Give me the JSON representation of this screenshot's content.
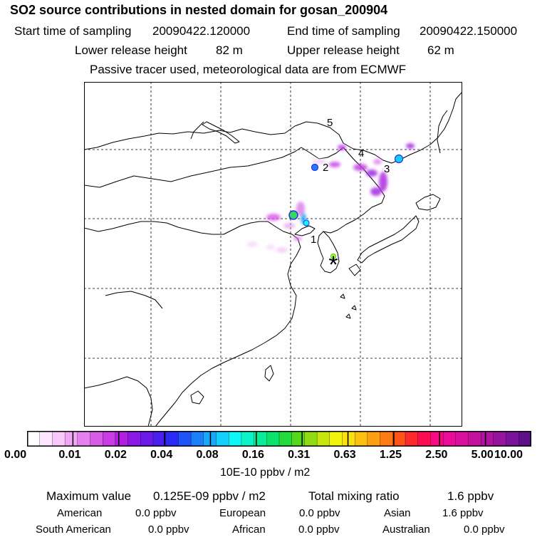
{
  "header": {
    "title": "SO2 source contributions in nested domain for gosan_200904",
    "start_label": "Start time of sampling",
    "start_value": "20090422.120000",
    "end_label": "End time of sampling",
    "end_value": "20090422.150000",
    "lower_label": "Lower release height",
    "lower_value": "82 m",
    "upper_label": "Upper release height",
    "upper_value": "62 m",
    "tracer_note": "Passive tracer used, meteorological data are from ECMWF"
  },
  "map": {
    "markers": [
      "1",
      "2",
      "3",
      "4",
      "5"
    ],
    "receptor_symbol": "*",
    "colors": {
      "frame": "#000000",
      "grid": "#000000",
      "coast": "#000000"
    }
  },
  "colorbar": {
    "colors": [
      "#ffffff",
      "#fde6ff",
      "#f8c8fb",
      "#f1a6f5",
      "#e780ef",
      "#d95ce9",
      "#c93be4",
      "#b31fe0",
      "#8a19e3",
      "#6b1ae8",
      "#4a20ee",
      "#2a2cf5",
      "#1f55f7",
      "#1c7ff8",
      "#18a7fa",
      "#14cffb",
      "#0ff5f8",
      "#0df1c8",
      "#0bec98",
      "#0ae26a",
      "#25da3c",
      "#55d81d",
      "#8fdc12",
      "#c7e50e",
      "#f2f50c",
      "#fbe20d",
      "#fcc10f",
      "#fd9f12",
      "#fd7a15",
      "#fd541a",
      "#fd2a2d",
      "#fc0c52",
      "#f90a82",
      "#ea0d9a",
      "#d9109e",
      "#c4129e",
      "#ae14a0",
      "#9614a0",
      "#7c129c",
      "#5f0f8a"
    ],
    "tick_labels": [
      "0.00",
      "0.01",
      "0.02",
      "0.04",
      "0.08",
      "0.16",
      "0.31",
      "0.63",
      "1.25",
      "2.50",
      "5.00",
      "10.00"
    ],
    "unit": "10E-10 ppbv / m2"
  },
  "stats": {
    "max_label": "Maximum value",
    "max_value": "0.125E-09 ppbv / m2",
    "total_label": "Total mixing ratio",
    "total_value": "1.6 ppbv",
    "regions": [
      {
        "name": "American",
        "value": "0.0 ppbv"
      },
      {
        "name": "European",
        "value": "0.0 ppbv"
      },
      {
        "name": "Asian",
        "value": "1.6 ppbv"
      },
      {
        "name": "South American",
        "value": "0.0 ppbv"
      },
      {
        "name": "African",
        "value": "0.0 ppbv"
      },
      {
        "name": "Australian",
        "value": "0.0 ppbv"
      }
    ]
  }
}
